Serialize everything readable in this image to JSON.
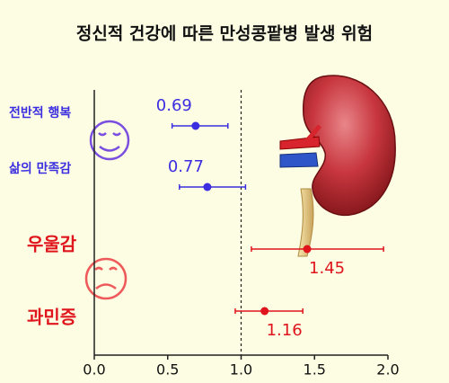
{
  "chart_data": {
    "type": "forest",
    "title": "정신적 건강에 따른 만성콩팥병 발생 위험",
    "categories": [
      "전반적 행복",
      "삶의 만족감",
      "우울감",
      "과민증"
    ],
    "values": [
      0.69,
      0.77,
      1.45,
      1.16
    ],
    "ci_low": [
      0.53,
      0.58,
      1.07,
      0.96
    ],
    "ci_high": [
      0.91,
      1.03,
      1.97,
      1.42
    ],
    "colors": [
      "#3b2ee0",
      "#3b2ee0",
      "#e0141c",
      "#e0141c"
    ],
    "xlim": [
      0,
      2
    ],
    "xticks": [
      {
        "value": 0,
        "label": "0.0"
      },
      {
        "value": 0.5,
        "label": "0.5"
      },
      {
        "value": 1,
        "label": "1.0"
      },
      {
        "value": 1.5,
        "label": "1.5"
      },
      {
        "value": 2,
        "label": "2.0"
      }
    ],
    "reference_line": 1
  }
}
